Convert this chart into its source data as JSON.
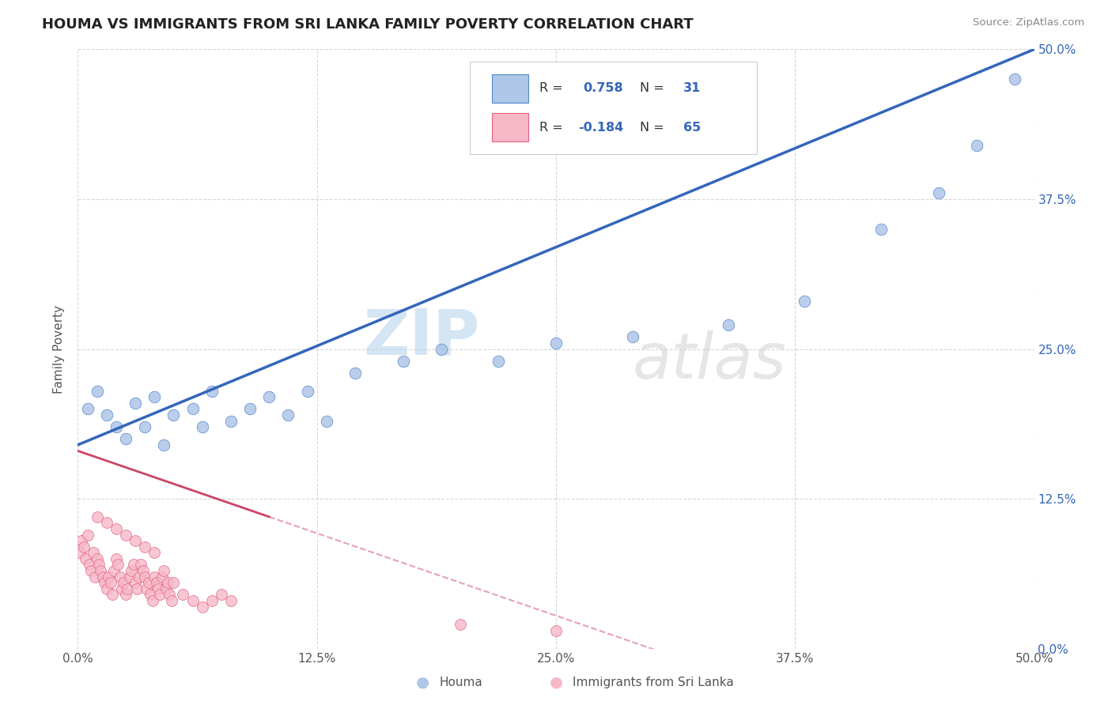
{
  "title": "HOUMA VS IMMIGRANTS FROM SRI LANKA FAMILY POVERTY CORRELATION CHART",
  "source": "Source: ZipAtlas.com",
  "ylabel": "Family Poverty",
  "xlim": [
    0.0,
    0.5
  ],
  "ylim": [
    0.0,
    0.5
  ],
  "xtick_vals": [
    0.0,
    0.125,
    0.25,
    0.375,
    0.5
  ],
  "xtick_labels": [
    "0.0%",
    "12.5%",
    "25.0%",
    "37.5%",
    "50.0%"
  ],
  "ytick_vals": [
    0.0,
    0.125,
    0.25,
    0.375,
    0.5
  ],
  "ytick_labels_right": [
    "0.0%",
    "12.5%",
    "25.0%",
    "37.5%",
    "50.0%"
  ],
  "houma_R": 0.758,
  "houma_N": 31,
  "sri_lanka_R": -0.184,
  "sri_lanka_N": 65,
  "houma_color": "#aec6e8",
  "houma_edge_color": "#5588cc",
  "houma_line_color": "#3366bb",
  "sri_lanka_color": "#f7b8c8",
  "sri_lanka_edge_color": "#e06080",
  "sri_lanka_line_color": "#cc4466",
  "watermark_zip": "ZIP",
  "watermark_atlas": "atlas",
  "background_color": "#ffffff",
  "grid_color": "#cccccc",
  "houma_scatter_x": [
    0.005,
    0.01,
    0.015,
    0.02,
    0.025,
    0.03,
    0.035,
    0.04,
    0.045,
    0.05,
    0.06,
    0.065,
    0.07,
    0.08,
    0.09,
    0.1,
    0.11,
    0.12,
    0.13,
    0.145,
    0.17,
    0.19,
    0.22,
    0.25,
    0.29,
    0.34,
    0.38,
    0.42,
    0.45,
    0.47,
    0.49
  ],
  "houma_scatter_y": [
    0.2,
    0.215,
    0.195,
    0.185,
    0.175,
    0.205,
    0.185,
    0.21,
    0.17,
    0.195,
    0.2,
    0.185,
    0.215,
    0.19,
    0.2,
    0.21,
    0.195,
    0.215,
    0.19,
    0.23,
    0.24,
    0.25,
    0.24,
    0.255,
    0.26,
    0.27,
    0.29,
    0.35,
    0.38,
    0.42,
    0.475
  ],
  "sri_lanka_scatter_x": [
    0.001,
    0.002,
    0.003,
    0.004,
    0.005,
    0.006,
    0.007,
    0.008,
    0.009,
    0.01,
    0.011,
    0.012,
    0.013,
    0.014,
    0.015,
    0.016,
    0.017,
    0.018,
    0.019,
    0.02,
    0.021,
    0.022,
    0.023,
    0.024,
    0.025,
    0.026,
    0.027,
    0.028,
    0.029,
    0.03,
    0.031,
    0.032,
    0.033,
    0.034,
    0.035,
    0.036,
    0.037,
    0.038,
    0.039,
    0.04,
    0.041,
    0.042,
    0.043,
    0.044,
    0.045,
    0.046,
    0.047,
    0.048,
    0.049,
    0.05,
    0.055,
    0.06,
    0.065,
    0.07,
    0.075,
    0.08,
    0.02,
    0.025,
    0.03,
    0.01,
    0.015,
    0.035,
    0.04,
    0.2,
    0.25
  ],
  "sri_lanka_scatter_y": [
    0.08,
    0.09,
    0.085,
    0.075,
    0.095,
    0.07,
    0.065,
    0.08,
    0.06,
    0.075,
    0.07,
    0.065,
    0.06,
    0.055,
    0.05,
    0.06,
    0.055,
    0.045,
    0.065,
    0.075,
    0.07,
    0.06,
    0.05,
    0.055,
    0.045,
    0.05,
    0.06,
    0.065,
    0.07,
    0.055,
    0.05,
    0.06,
    0.07,
    0.065,
    0.06,
    0.05,
    0.055,
    0.045,
    0.04,
    0.06,
    0.055,
    0.05,
    0.045,
    0.06,
    0.065,
    0.05,
    0.055,
    0.045,
    0.04,
    0.055,
    0.045,
    0.04,
    0.035,
    0.04,
    0.045,
    0.04,
    0.1,
    0.095,
    0.09,
    0.11,
    0.105,
    0.085,
    0.08,
    0.02,
    0.015
  ],
  "sri_line_solid_end": 0.1,
  "sri_line_dashed_end": 0.5
}
